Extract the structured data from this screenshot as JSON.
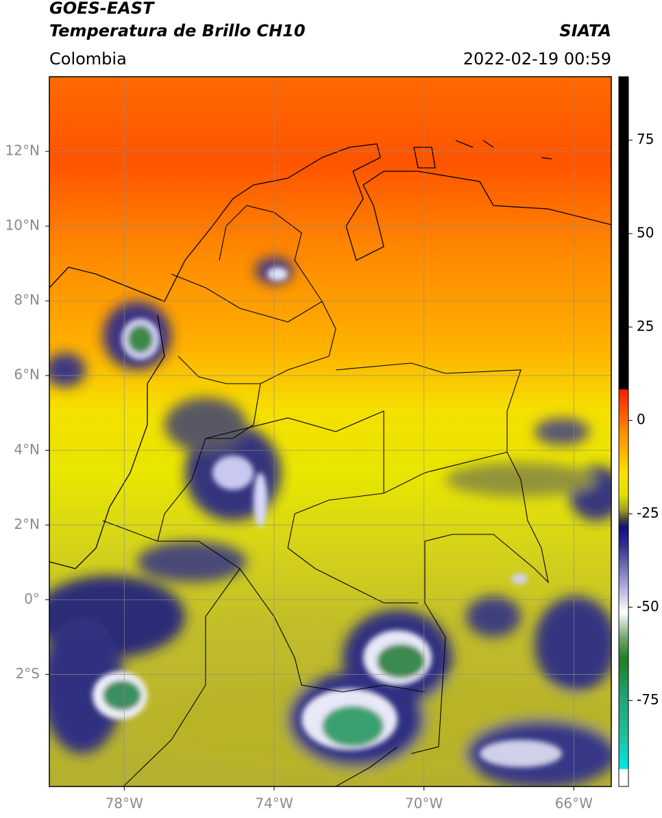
{
  "header": {
    "satellite": "GOES-EAST",
    "product": "Temperatura de Brillo CH10",
    "source": "SIATA",
    "region": "Colombia",
    "datetime": "2022-02-19 00:59"
  },
  "map": {
    "xlim": [
      -80,
      -65
    ],
    "ylim": [
      -5,
      14
    ],
    "xticks": [
      {
        "value": -78,
        "label": "78°W"
      },
      {
        "value": -74,
        "label": "74°W"
      },
      {
        "value": -70,
        "label": "70°W"
      },
      {
        "value": -66,
        "label": "66°W"
      }
    ],
    "yticks": [
      {
        "value": 12,
        "label": "12°N"
      },
      {
        "value": 10,
        "label": "10°N"
      },
      {
        "value": 8,
        "label": "8°N"
      },
      {
        "value": 6,
        "label": "6°N"
      },
      {
        "value": 4,
        "label": "4°N"
      },
      {
        "value": 2,
        "label": "2°N"
      },
      {
        "value": 0,
        "label": "0°"
      },
      {
        "value": -2,
        "label": "2°S"
      }
    ],
    "grid": true
  },
  "colorbar": {
    "lim": [
      -98,
      92
    ],
    "ticks": [
      75,
      50,
      25,
      0,
      -25,
      -50,
      -75
    ]
  }
}
